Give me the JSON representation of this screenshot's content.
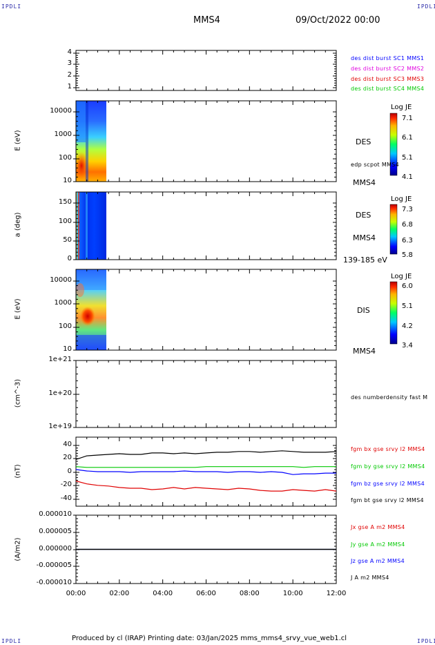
{
  "header": {
    "corner_left_top": "IPDLI",
    "corner_right_top": "IPDLI",
    "corner_left_bottom": "IPDLI",
    "corner_right_bottom": "IPDLI",
    "spacecraft": "MMS4",
    "datetime": "09/Oct/2022 00:00"
  },
  "footer": {
    "text": "Produced by cl (IRAP)   Printing date: 03/Jan/2025   mms_mms4_srvy_vue_web1.cl"
  },
  "colors": {
    "blue": "#0000ff",
    "magenta": "#e000e0",
    "red": "#e00000",
    "green": "#00c800",
    "black": "#000000"
  },
  "chart_data": [
    {
      "type": "line",
      "panel": "spacecraft-trace",
      "yticks": [
        "4",
        "3",
        "2",
        "1"
      ],
      "ylim": [
        0.5,
        4.5
      ],
      "legend": [
        {
          "text": "des dist burst SC1 MMS1",
          "color": "#0000ff"
        },
        {
          "text": "des dist burst SC2 MMS2",
          "color": "#e000e0"
        },
        {
          "text": "des dist burst SC3 MMS3",
          "color": "#e00000"
        },
        {
          "text": "des dist burst SC4 MMS4",
          "color": "#00c800"
        }
      ],
      "series": []
    },
    {
      "type": "heatmap",
      "panel": "des-energy",
      "ylabel": "E (eV)",
      "scale": "log",
      "yticks": [
        "10000",
        "1000",
        "100",
        "10"
      ],
      "side_label": "DES",
      "side_label2": "edp scpot MMS4",
      "bottom_label": "MMS4",
      "colorbar": {
        "title": "Log JE",
        "ticks": [
          "7.1",
          "6.1",
          "5.1",
          "4.1"
        ]
      },
      "data_interval": [
        "00:00",
        "01:20"
      ]
    },
    {
      "type": "heatmap",
      "panel": "des-pitch",
      "ylabel": "a (deg)",
      "yticks": [
        "150",
        "100",
        "50",
        "0"
      ],
      "side_label": "DES",
      "side_label2": "MMS4",
      "bottom_label": "139-185 eV",
      "colorbar": {
        "title": "Log JE",
        "ticks": [
          "7.3",
          "6.8",
          "6.3",
          "5.8"
        ]
      },
      "data_interval": [
        "00:00",
        "01:20"
      ]
    },
    {
      "type": "heatmap",
      "panel": "dis-energy",
      "ylabel": "E (eV)",
      "scale": "log",
      "yticks": [
        "10000",
        "1000",
        "100",
        "10"
      ],
      "side_label": "DIS",
      "bottom_label": "MMS4",
      "colorbar": {
        "title": "Log JE",
        "ticks": [
          "6.0",
          "5.1",
          "4.2",
          "3.4"
        ]
      },
      "data_interval": [
        "00:00",
        "01:20"
      ]
    },
    {
      "type": "line",
      "panel": "density",
      "ylabel": "(cm^-3)",
      "scale": "log",
      "yticks": [
        "1e+21",
        "1e+20",
        "1e+19"
      ],
      "legend": [
        {
          "text": "des numberdensity fast M",
          "color": "#000000"
        }
      ],
      "series": []
    },
    {
      "type": "line",
      "panel": "fgm",
      "ylabel": "(nT)",
      "yticks": [
        "40",
        "20",
        "0",
        "-20",
        "-40"
      ],
      "ylim": [
        -48,
        48
      ],
      "x": [
        0,
        0.5,
        1,
        1.5,
        2,
        2.5,
        3,
        3.5,
        4,
        4.5,
        5,
        5.5,
        6,
        6.5,
        7,
        7.5,
        8,
        8.5,
        9,
        9.5,
        10,
        10.5,
        11,
        11.5,
        12
      ],
      "series": [
        {
          "name": "fgm bx gse srvy l2 MMS4",
          "color": "#e00000",
          "values": [
            -13,
            -17,
            -19,
            -20,
            -22,
            -23,
            -23,
            -25,
            -24,
            -22,
            -24,
            -22,
            -23,
            -24,
            -25,
            -23,
            -24,
            -26,
            -27,
            -27,
            -25,
            -26,
            -27,
            -25,
            -27
          ]
        },
        {
          "name": "fgm by gse srvy l2 MMS4",
          "color": "#00c800",
          "values": [
            7,
            6,
            6,
            6,
            6,
            6,
            6,
            6,
            6,
            6,
            6,
            6,
            7,
            7,
            7,
            7,
            7,
            7,
            7,
            7,
            7,
            6,
            7,
            7,
            7
          ]
        },
        {
          "name": "fgm bz gse srvy l2 MMS4",
          "color": "#0000ff",
          "values": [
            3,
            1,
            0,
            0,
            0,
            -1,
            0,
            0,
            0,
            0,
            1,
            0,
            0,
            0,
            -1,
            0,
            0,
            -1,
            0,
            -1,
            -4,
            -3,
            -3,
            -2,
            -2
          ]
        },
        {
          "name": "fgm bt gse srvy l2 MMS4",
          "color": "#000000",
          "values": [
            17,
            22,
            23,
            24,
            25,
            24,
            24,
            26,
            26,
            25,
            26,
            25,
            26,
            27,
            27,
            28,
            28,
            27,
            28,
            29,
            28,
            27,
            27,
            27,
            28
          ]
        }
      ]
    },
    {
      "type": "line",
      "panel": "current",
      "ylabel": "(A/m2)",
      "yticks": [
        "0.000010",
        "0.000005",
        "0.000000",
        "-0.000005",
        "-0.000010"
      ],
      "ylim": [
        -1e-05,
        1e-05
      ],
      "x": [
        0,
        0.2,
        12
      ],
      "series": [
        {
          "name": "Jx gse A m2 MMS4",
          "color": "#e00000",
          "values": [
            0,
            0,
            0
          ]
        },
        {
          "name": "Jy gse A m2 MMS4",
          "color": "#00c800",
          "values": [
            0,
            0,
            0
          ]
        },
        {
          "name": "Jz gse A m2 MMS4",
          "color": "#0000ff",
          "values": [
            0,
            0,
            0
          ]
        },
        {
          "name": "J A m2 MMS4",
          "color": "#000000",
          "values": [
            0,
            0,
            0
          ]
        }
      ],
      "xticks": [
        "00:00",
        "02:00",
        "04:00",
        "06:00",
        "08:00",
        "10:00",
        "12:00"
      ],
      "xlim": [
        0,
        12
      ]
    }
  ]
}
